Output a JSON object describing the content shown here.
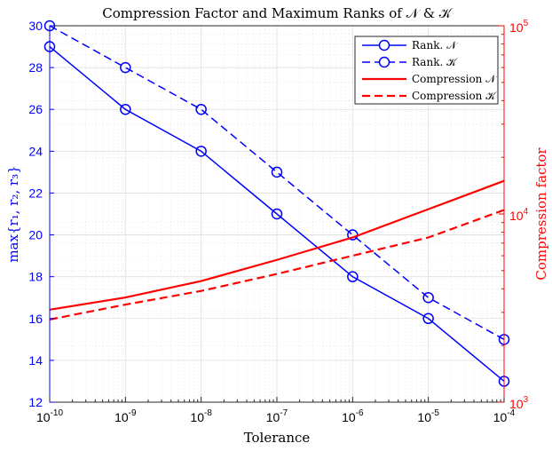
{
  "chart_data": {
    "type": "line",
    "title": "Compression Factor and Maximum Ranks of 𝒩 & 𝒦",
    "xlabel": "Tolerance",
    "ylabel_left": "max{r₁, r₂, r₃}",
    "ylabel_right": "Compression factor",
    "x_scale": "log",
    "xlim": [
      1e-10,
      0.0001
    ],
    "x_tick_labels": [
      {
        "base": "10",
        "exp": "-10"
      },
      {
        "base": "10",
        "exp": "-9"
      },
      {
        "base": "10",
        "exp": "-8"
      },
      {
        "base": "10",
        "exp": "-7"
      },
      {
        "base": "10",
        "exp": "-6"
      },
      {
        "base": "10",
        "exp": "-5"
      },
      {
        "base": "10",
        "exp": "-4"
      }
    ],
    "ylim_left": [
      12,
      30
    ],
    "y_ticks_left": [
      "12",
      "14",
      "16",
      "18",
      "20",
      "22",
      "24",
      "26",
      "28",
      "30"
    ],
    "y_scale_right": "log",
    "ylim_right": [
      1000,
      100000
    ],
    "y_ticks_right": [
      {
        "base": "10",
        "exp": "3"
      },
      {
        "base": "10",
        "exp": "4"
      },
      {
        "base": "10",
        "exp": "5"
      }
    ],
    "grid": true,
    "legend_position": "top-right",
    "colors": {
      "left_axis": "#0000ff",
      "right_axis": "#ff0000"
    },
    "x": [
      1e-10,
      1e-09,
      1e-08,
      1e-07,
      1e-06,
      1e-05,
      0.0001
    ],
    "series": [
      {
        "name": "Rank. 𝒩",
        "axis": "left",
        "color": "#0000ff",
        "style": "solid",
        "marker": "circle",
        "values": [
          29,
          26,
          24,
          21,
          18,
          16,
          13
        ]
      },
      {
        "name": "Rank. 𝒦",
        "axis": "left",
        "color": "#0000ff",
        "style": "dashed",
        "marker": "circle",
        "values": [
          30,
          28,
          26,
          23,
          20,
          17,
          15
        ]
      },
      {
        "name": "Compression 𝒩",
        "axis": "right",
        "color": "#ff0000",
        "style": "solid",
        "marker": "none",
        "values": [
          3100,
          3600,
          4400,
          5700,
          7500,
          10600,
          15000
        ]
      },
      {
        "name": "Compression 𝒦",
        "axis": "right",
        "color": "#ff0000",
        "style": "dashed",
        "marker": "none",
        "values": [
          2750,
          3300,
          3900,
          4800,
          6000,
          7500,
          10500
        ]
      }
    ]
  }
}
